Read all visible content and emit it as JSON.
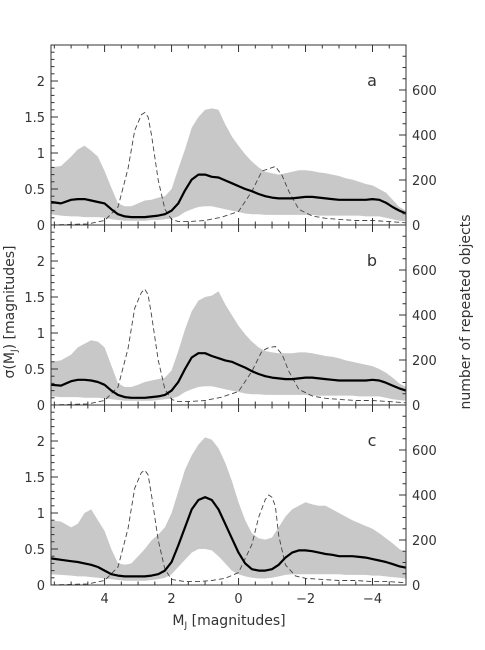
{
  "chart_data": [
    {
      "panel_label": "a",
      "type": "line",
      "x_series": [
        5.6,
        5.3,
        5.0,
        4.8,
        4.6,
        4.4,
        4.2,
        4.0,
        3.8,
        3.6,
        3.4,
        3.2,
        3.0,
        2.8,
        2.6,
        2.4,
        2.2,
        2.0,
        1.8,
        1.6,
        1.4,
        1.2,
        1.0,
        0.8,
        0.6,
        0.4,
        0.2,
        0.0,
        -0.2,
        -0.4,
        -0.6,
        -0.8,
        -1.0,
        -1.2,
        -1.4,
        -1.6,
        -1.8,
        -2.0,
        -2.2,
        -2.4,
        -2.6,
        -2.8,
        -3.0,
        -3.2,
        -3.4,
        -3.6,
        -3.8,
        -4.0,
        -4.2,
        -4.4,
        -4.6,
        -4.8,
        -5.0
      ],
      "sigma_mean": [
        0.32,
        0.3,
        0.35,
        0.36,
        0.36,
        0.34,
        0.32,
        0.3,
        0.22,
        0.15,
        0.12,
        0.11,
        0.11,
        0.11,
        0.12,
        0.13,
        0.15,
        0.2,
        0.3,
        0.48,
        0.63,
        0.7,
        0.7,
        0.67,
        0.66,
        0.62,
        0.58,
        0.54,
        0.5,
        0.47,
        0.43,
        0.4,
        0.38,
        0.37,
        0.37,
        0.37,
        0.38,
        0.39,
        0.39,
        0.38,
        0.37,
        0.36,
        0.35,
        0.35,
        0.35,
        0.35,
        0.35,
        0.36,
        0.35,
        0.31,
        0.25,
        0.2,
        0.16
      ],
      "sigma_upper": [
        0.8,
        0.82,
        0.95,
        1.05,
        1.1,
        1.03,
        0.95,
        0.75,
        0.52,
        0.3,
        0.26,
        0.26,
        0.3,
        0.34,
        0.35,
        0.38,
        0.4,
        0.5,
        0.78,
        1.05,
        1.35,
        1.5,
        1.6,
        1.62,
        1.6,
        1.4,
        1.23,
        1.1,
        0.98,
        0.88,
        0.8,
        0.74,
        0.72,
        0.7,
        0.72,
        0.74,
        0.76,
        0.76,
        0.75,
        0.73,
        0.72,
        0.7,
        0.68,
        0.65,
        0.63,
        0.6,
        0.57,
        0.55,
        0.5,
        0.45,
        0.35,
        0.25,
        0.2
      ],
      "sigma_lower": [
        0.15,
        0.13,
        0.12,
        0.12,
        0.11,
        0.11,
        0.11,
        0.1,
        0.08,
        0.07,
        0.06,
        0.06,
        0.06,
        0.06,
        0.07,
        0.07,
        0.08,
        0.09,
        0.12,
        0.18,
        0.22,
        0.25,
        0.26,
        0.26,
        0.24,
        0.22,
        0.2,
        0.18,
        0.16,
        0.15,
        0.15,
        0.14,
        0.14,
        0.14,
        0.14,
        0.14,
        0.14,
        0.14,
        0.14,
        0.13,
        0.13,
        0.13,
        0.13,
        0.13,
        0.13,
        0.13,
        0.12,
        0.12,
        0.12,
        0.1,
        0.08,
        0.06,
        0.05
      ],
      "dashed_x": [
        5.6,
        4.5,
        4.0,
        3.6,
        3.3,
        3.1,
        2.9,
        2.8,
        2.7,
        2.6,
        2.4,
        2.2,
        2.0,
        1.8,
        1.5,
        1.0,
        0.5,
        0.0,
        -0.4,
        -0.7,
        -0.9,
        -1.1,
        -1.3,
        -1.5,
        -1.8,
        -2.2,
        -2.6,
        -3.0,
        -3.5,
        -4.0,
        -4.5,
        -5.0
      ],
      "dashed_count": [
        0,
        5,
        20,
        80,
        250,
        420,
        490,
        500,
        480,
        400,
        200,
        70,
        25,
        15,
        15,
        20,
        35,
        60,
        150,
        240,
        250,
        260,
        220,
        150,
        70,
        40,
        30,
        25,
        20,
        20,
        15,
        10
      ]
    },
    {
      "panel_label": "b",
      "type": "line",
      "x_series": [
        5.6,
        5.3,
        5.0,
        4.8,
        4.6,
        4.4,
        4.2,
        4.0,
        3.8,
        3.6,
        3.4,
        3.2,
        3.0,
        2.8,
        2.6,
        2.4,
        2.2,
        2.0,
        1.8,
        1.6,
        1.4,
        1.2,
        1.0,
        0.8,
        0.6,
        0.4,
        0.2,
        0.0,
        -0.2,
        -0.4,
        -0.6,
        -0.8,
        -1.0,
        -1.2,
        -1.4,
        -1.6,
        -1.8,
        -2.0,
        -2.2,
        -2.4,
        -2.6,
        -2.8,
        -3.0,
        -3.2,
        -3.4,
        -3.6,
        -3.8,
        -4.0,
        -4.2,
        -4.4,
        -4.6,
        -4.8,
        -5.0
      ],
      "sigma_mean": [
        0.28,
        0.27,
        0.33,
        0.35,
        0.35,
        0.34,
        0.32,
        0.28,
        0.2,
        0.14,
        0.11,
        0.1,
        0.1,
        0.1,
        0.11,
        0.12,
        0.14,
        0.2,
        0.32,
        0.5,
        0.66,
        0.72,
        0.72,
        0.68,
        0.65,
        0.62,
        0.6,
        0.56,
        0.52,
        0.47,
        0.43,
        0.4,
        0.38,
        0.37,
        0.36,
        0.36,
        0.37,
        0.38,
        0.38,
        0.37,
        0.36,
        0.35,
        0.34,
        0.34,
        0.34,
        0.34,
        0.34,
        0.35,
        0.34,
        0.31,
        0.27,
        0.23,
        0.2
      ],
      "sigma_upper": [
        0.6,
        0.62,
        0.7,
        0.8,
        0.85,
        0.9,
        0.88,
        0.8,
        0.55,
        0.3,
        0.25,
        0.25,
        0.28,
        0.32,
        0.34,
        0.36,
        0.38,
        0.48,
        0.75,
        1.05,
        1.3,
        1.45,
        1.5,
        1.52,
        1.58,
        1.4,
        1.25,
        1.1,
        0.98,
        0.88,
        0.8,
        0.75,
        0.73,
        0.72,
        0.72,
        0.72,
        0.73,
        0.73,
        0.72,
        0.7,
        0.68,
        0.67,
        0.65,
        0.62,
        0.6,
        0.58,
        0.56,
        0.54,
        0.5,
        0.45,
        0.38,
        0.3,
        0.25
      ],
      "sigma_lower": [
        0.12,
        0.11,
        0.11,
        0.11,
        0.1,
        0.1,
        0.1,
        0.09,
        0.08,
        0.07,
        0.06,
        0.06,
        0.06,
        0.06,
        0.06,
        0.07,
        0.08,
        0.09,
        0.12,
        0.18,
        0.22,
        0.25,
        0.26,
        0.26,
        0.24,
        0.22,
        0.2,
        0.18,
        0.16,
        0.15,
        0.15,
        0.14,
        0.14,
        0.14,
        0.14,
        0.14,
        0.14,
        0.14,
        0.13,
        0.13,
        0.13,
        0.13,
        0.13,
        0.13,
        0.13,
        0.12,
        0.12,
        0.12,
        0.12,
        0.1,
        0.08,
        0.07,
        0.06
      ],
      "dashed_x": [
        5.6,
        4.5,
        4.0,
        3.6,
        3.3,
        3.1,
        2.9,
        2.8,
        2.7,
        2.6,
        2.4,
        2.2,
        2.0,
        1.8,
        1.5,
        1.0,
        0.5,
        0.0,
        -0.4,
        -0.7,
        -0.9,
        -1.1,
        -1.3,
        -1.5,
        -1.8,
        -2.2,
        -2.6,
        -3.0,
        -3.5,
        -4.0,
        -4.5,
        -5.0
      ],
      "dashed_count": [
        0,
        5,
        20,
        80,
        250,
        430,
        500,
        515,
        490,
        400,
        200,
        70,
        25,
        15,
        15,
        20,
        35,
        60,
        150,
        240,
        255,
        260,
        225,
        150,
        70,
        40,
        30,
        25,
        20,
        20,
        15,
        10
      ]
    },
    {
      "panel_label": "c",
      "type": "line",
      "x_series": [
        5.6,
        5.3,
        5.0,
        4.8,
        4.6,
        4.4,
        4.2,
        4.0,
        3.8,
        3.6,
        3.4,
        3.2,
        3.0,
        2.8,
        2.6,
        2.4,
        2.2,
        2.0,
        1.8,
        1.6,
        1.4,
        1.2,
        1.0,
        0.8,
        0.6,
        0.4,
        0.2,
        0.0,
        -0.2,
        -0.4,
        -0.6,
        -0.8,
        -1.0,
        -1.2,
        -1.4,
        -1.6,
        -1.8,
        -2.0,
        -2.2,
        -2.4,
        -2.6,
        -2.8,
        -3.0,
        -3.2,
        -3.4,
        -3.6,
        -3.8,
        -4.0,
        -4.2,
        -4.4,
        -4.6,
        -4.8,
        -5.0
      ],
      "sigma_mean": [
        0.37,
        0.35,
        0.33,
        0.32,
        0.3,
        0.28,
        0.25,
        0.2,
        0.15,
        0.13,
        0.12,
        0.12,
        0.12,
        0.12,
        0.13,
        0.15,
        0.2,
        0.32,
        0.55,
        0.8,
        1.05,
        1.18,
        1.22,
        1.18,
        1.05,
        0.85,
        0.65,
        0.45,
        0.3,
        0.22,
        0.2,
        0.2,
        0.22,
        0.28,
        0.38,
        0.45,
        0.48,
        0.48,
        0.47,
        0.45,
        0.43,
        0.42,
        0.4,
        0.4,
        0.4,
        0.39,
        0.38,
        0.36,
        0.34,
        0.32,
        0.29,
        0.26,
        0.24
      ],
      "sigma_upper": [
        0.9,
        0.88,
        0.8,
        0.85,
        1.0,
        1.05,
        0.9,
        0.75,
        0.5,
        0.3,
        0.28,
        0.3,
        0.4,
        0.5,
        0.62,
        0.7,
        0.8,
        1.0,
        1.3,
        1.6,
        1.8,
        1.95,
        2.05,
        2.02,
        1.9,
        1.7,
        1.45,
        1.15,
        0.9,
        0.72,
        0.65,
        0.63,
        0.66,
        0.8,
        0.95,
        1.05,
        1.1,
        1.15,
        1.12,
        1.1,
        1.1,
        1.05,
        1.0,
        0.95,
        0.9,
        0.86,
        0.82,
        0.78,
        0.72,
        0.65,
        0.58,
        0.5,
        0.45
      ],
      "sigma_lower": [
        0.15,
        0.14,
        0.13,
        0.12,
        0.12,
        0.11,
        0.1,
        0.09,
        0.08,
        0.07,
        0.06,
        0.06,
        0.06,
        0.06,
        0.07,
        0.08,
        0.1,
        0.15,
        0.25,
        0.35,
        0.45,
        0.5,
        0.5,
        0.48,
        0.4,
        0.3,
        0.2,
        0.15,
        0.12,
        0.1,
        0.09,
        0.09,
        0.1,
        0.12,
        0.14,
        0.15,
        0.15,
        0.15,
        0.15,
        0.15,
        0.15,
        0.15,
        0.15,
        0.14,
        0.14,
        0.14,
        0.14,
        0.13,
        0.13,
        0.12,
        0.11,
        0.1,
        0.09
      ],
      "dashed_x": [
        5.6,
        4.5,
        4.0,
        3.6,
        3.3,
        3.1,
        2.9,
        2.8,
        2.7,
        2.6,
        2.4,
        2.2,
        2.0,
        1.6,
        1.2,
        0.8,
        0.4,
        0.0,
        -0.4,
        -0.6,
        -0.8,
        -0.9,
        -1.0,
        -1.1,
        -1.2,
        -1.4,
        -1.7,
        -2.0,
        -2.5,
        -3.0,
        -3.5,
        -4.0,
        -4.5,
        -5.0
      ],
      "dashed_count": [
        0,
        5,
        20,
        80,
        250,
        430,
        500,
        510,
        490,
        400,
        200,
        70,
        25,
        15,
        15,
        20,
        30,
        55,
        180,
        300,
        380,
        400,
        390,
        350,
        220,
        90,
        40,
        30,
        25,
        20,
        20,
        15,
        15,
        10
      ]
    }
  ],
  "axes": {
    "x": {
      "label": "M",
      "label_sub": "J",
      "label_suffix": "  [magnitudes]",
      "range": [
        5.6,
        -5.0
      ],
      "ticks": [
        4,
        2,
        0,
        -2,
        -4
      ],
      "tick_labels": [
        "4",
        "2",
        "0",
        "−2",
        "−4"
      ]
    },
    "y_left": {
      "label": "σ(M",
      "label_sub": "J",
      "label_suffix": ")  [magnitudes]",
      "range": [
        0,
        2.5
      ],
      "ticks": [
        0,
        0.5,
        1,
        1.5,
        2
      ],
      "tick_labels": [
        "0",
        "0.5",
        "1",
        "1.5",
        "2"
      ]
    },
    "y_right": {
      "label": "number of repeated objects",
      "range": [
        0,
        800
      ],
      "ticks": [
        0,
        200,
        400,
        600
      ],
      "tick_labels": [
        "0",
        "200",
        "400",
        "600"
      ]
    }
  },
  "colors": {
    "band": "#c8c8c8",
    "mean_line": "#000000",
    "count_line": "#444444",
    "axes": "#333333"
  },
  "series_styles": {
    "band": "shaded gray (spread of σ)",
    "mean": "thick solid black",
    "count": "thin dashed"
  }
}
